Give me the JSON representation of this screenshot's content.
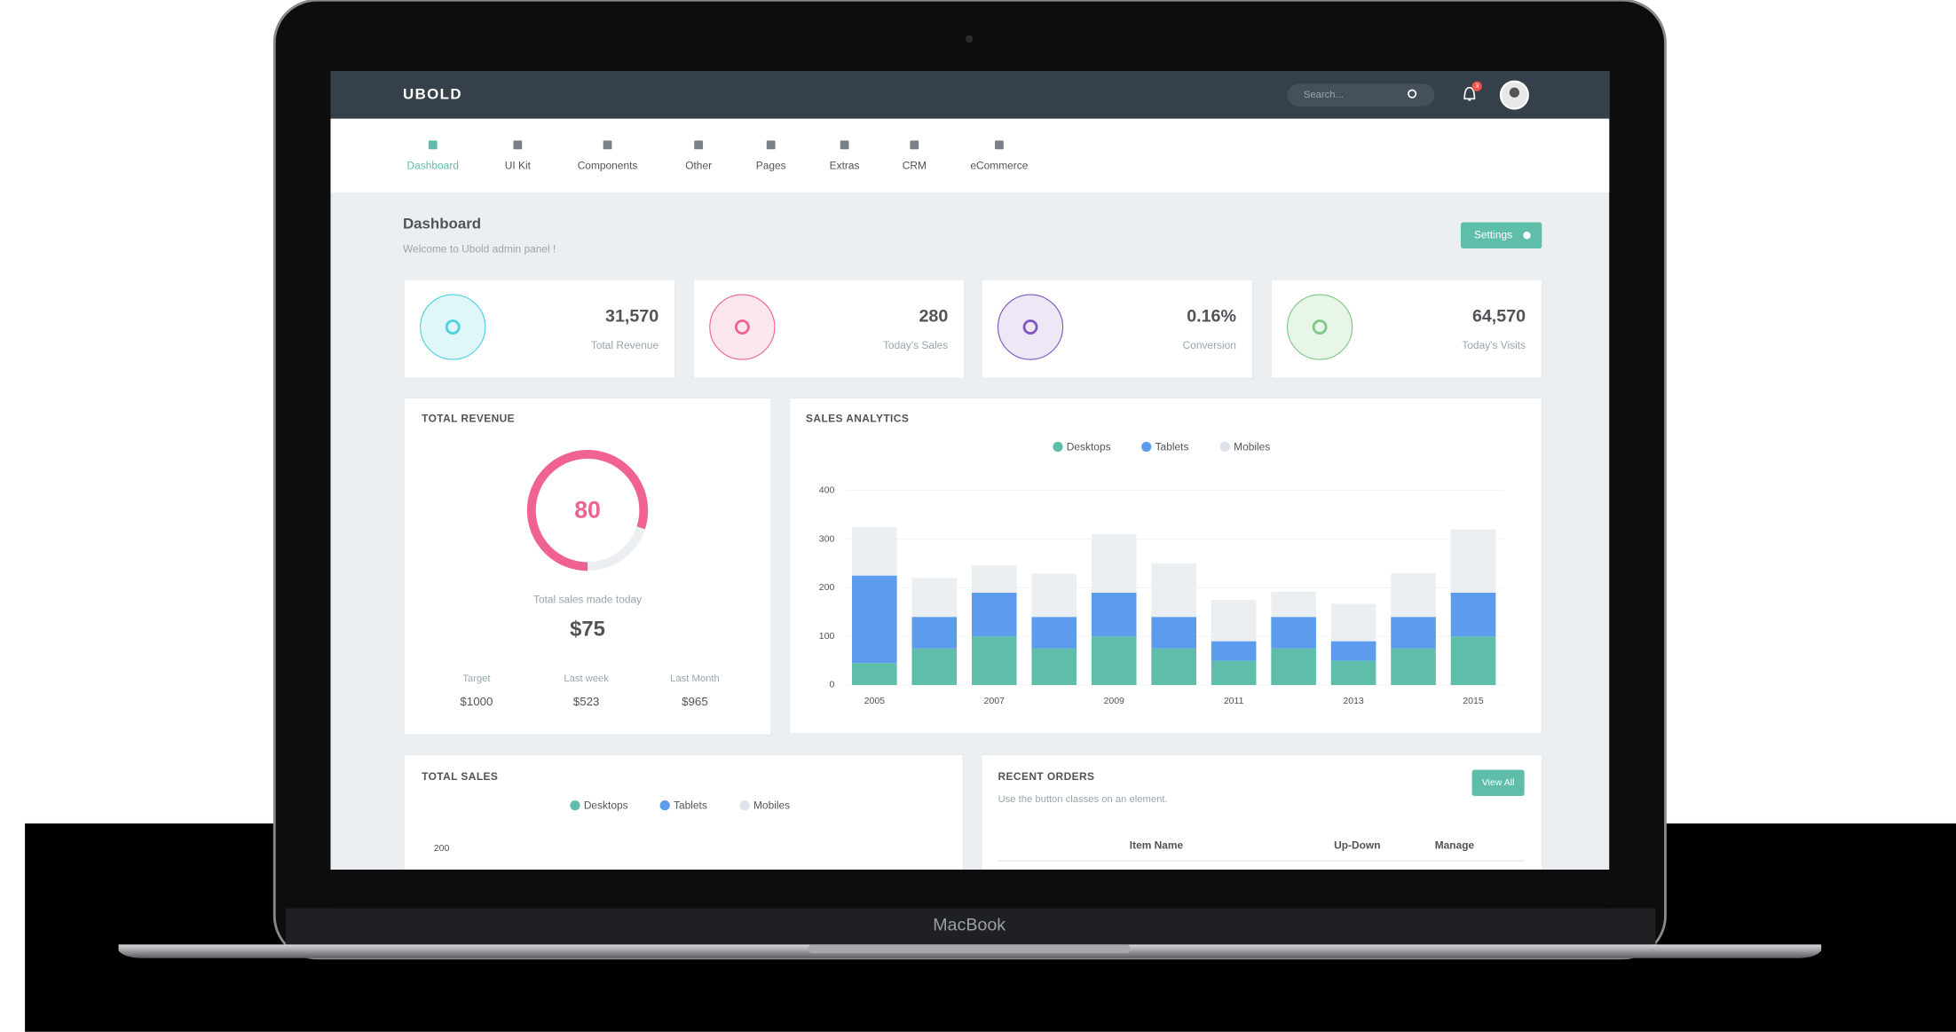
{
  "laptop_label": "MacBook",
  "topbar": {
    "logo": "UBOLD",
    "search_placeholder": "Search...",
    "notification_count": "3"
  },
  "nav": [
    "Dashboard",
    "UI Kit",
    "Components",
    "Other",
    "Pages",
    "Extras",
    "CRM",
    "eCommerce"
  ],
  "page": {
    "title": "Dashboard",
    "subtitle": "Welcome to Ubold admin panel !",
    "button": "Settings"
  },
  "stats": [
    {
      "value": "31,570",
      "label": "Total Revenue"
    },
    {
      "value": "280",
      "label": "Today's Sales"
    },
    {
      "value": "0.16%",
      "label": "Conversion"
    },
    {
      "value": "64,570",
      "label": "Today's Visits"
    }
  ],
  "total_revenue": {
    "title": "TOTAL REVENUE",
    "gauge_value": 80,
    "caption": "Total sales made today",
    "amount": "$75",
    "metrics": [
      {
        "label": "Target",
        "value": "$1000"
      },
      {
        "label": "Last week",
        "value": "$523"
      },
      {
        "label": "Last Month",
        "value": "$965"
      }
    ]
  },
  "chart_data": {
    "type": "bar",
    "stacked": true,
    "title": "SALES ANALYTICS",
    "categories": [
      "2005",
      null,
      "2007",
      null,
      "2009",
      null,
      "2011",
      null,
      "2013",
      null,
      "2015"
    ],
    "series": [
      {
        "name": "Desktops",
        "color": "#5fbeaa",
        "values": [
          45,
          75,
          100,
          75,
          100,
          75,
          50,
          75,
          50,
          75,
          100
        ]
      },
      {
        "name": "Tablets",
        "color": "#5d9cec",
        "values": [
          180,
          65,
          90,
          65,
          90,
          65,
          40,
          65,
          40,
          65,
          90
        ]
      },
      {
        "name": "Mobiles",
        "color": "#ebeff2",
        "values": [
          100,
          80,
          56,
          89,
          120,
          110,
          85,
          52,
          77,
          90,
          130
        ]
      }
    ],
    "ylim": [
      0,
      400
    ],
    "yticks": [
      0,
      100,
      200,
      300,
      400
    ],
    "grid": true
  },
  "total_sales": {
    "title": "TOTAL SALES",
    "legend": [
      "Desktops",
      "Tablets",
      "Mobiles"
    ],
    "tick": "200"
  },
  "recent_orders": {
    "title": "RECENT ORDERS",
    "subtitle": "Use the button classes on an element.",
    "button": "View All",
    "columns": [
      "Item Name",
      "Up-Down",
      "Manage"
    ]
  }
}
